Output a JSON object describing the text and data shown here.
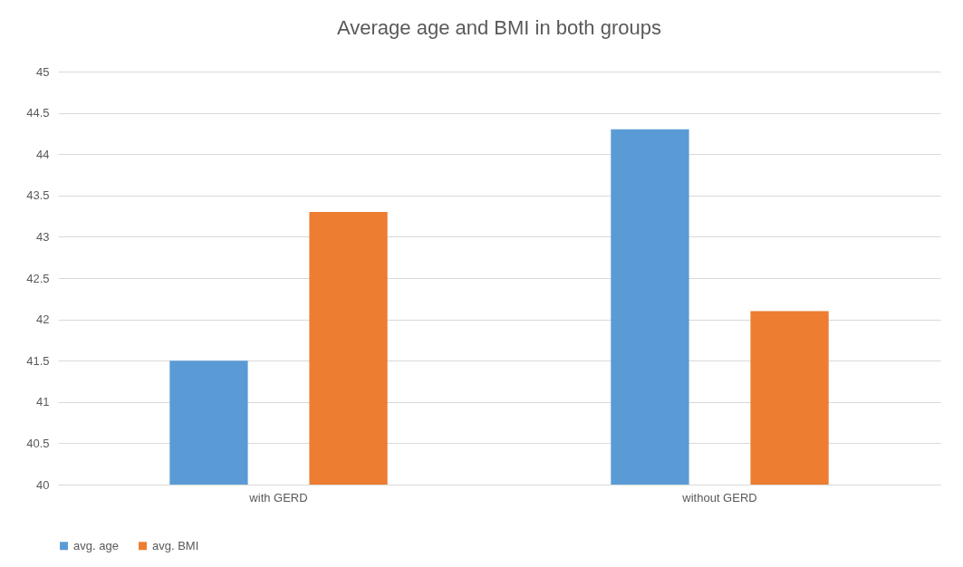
{
  "chart_data": {
    "type": "bar",
    "title": "Average age and BMI in both groups",
    "categories": [
      "with GERD",
      "without GERD"
    ],
    "series": [
      {
        "name": "avg. age",
        "color": "#5b9bd5",
        "values": [
          41.5,
          44.3
        ]
      },
      {
        "name": "avg. BMI",
        "color": "#ed7d31",
        "values": [
          43.3,
          42.1
        ]
      }
    ],
    "ylim": [
      40,
      45
    ],
    "yticks": [
      40,
      40.5,
      41,
      41.5,
      42,
      42.5,
      43,
      43.5,
      44,
      44.5,
      45
    ],
    "grid": "y",
    "legend": "bottom"
  }
}
